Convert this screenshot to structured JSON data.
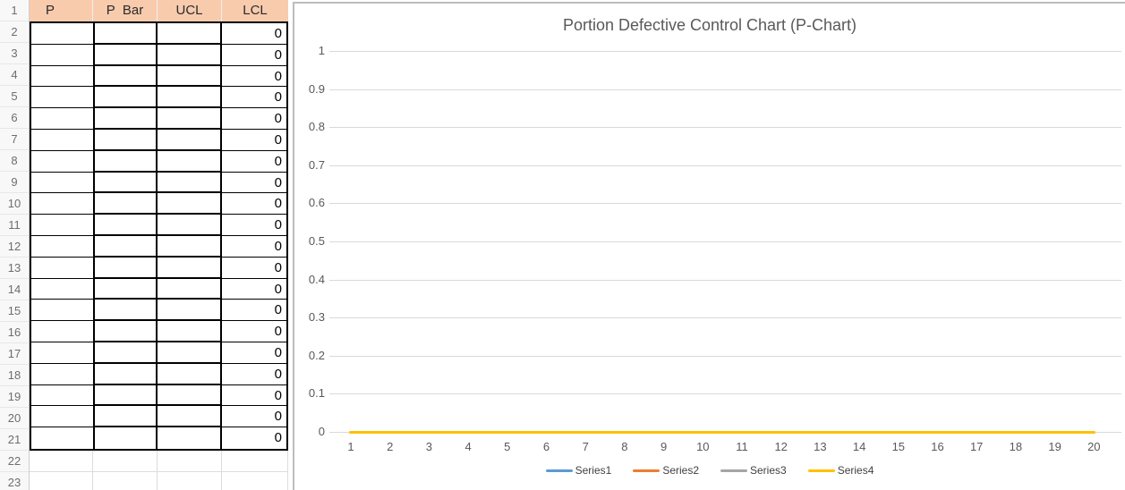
{
  "sheet": {
    "row_numbers": [
      "1",
      "2",
      "3",
      "4",
      "5",
      "6",
      "7",
      "8",
      "9",
      "10",
      "11",
      "12",
      "13",
      "14",
      "15",
      "16",
      "17",
      "18",
      "19",
      "20",
      "21",
      "22",
      "23"
    ],
    "columns": [
      "P",
      "P  Bar",
      "UCL",
      "LCL"
    ],
    "header_fill": "#F8CBAD",
    "rows": [
      {
        "p": "",
        "p_bar": "",
        "ucl": "",
        "lcl": "0"
      },
      {
        "p": "",
        "p_bar": "",
        "ucl": "",
        "lcl": "0"
      },
      {
        "p": "",
        "p_bar": "",
        "ucl": "",
        "lcl": "0"
      },
      {
        "p": "",
        "p_bar": "",
        "ucl": "",
        "lcl": "0"
      },
      {
        "p": "",
        "p_bar": "",
        "ucl": "",
        "lcl": "0"
      },
      {
        "p": "",
        "p_bar": "",
        "ucl": "",
        "lcl": "0"
      },
      {
        "p": "",
        "p_bar": "",
        "ucl": "",
        "lcl": "0"
      },
      {
        "p": "",
        "p_bar": "",
        "ucl": "",
        "lcl": "0"
      },
      {
        "p": "",
        "p_bar": "",
        "ucl": "",
        "lcl": "0"
      },
      {
        "p": "",
        "p_bar": "",
        "ucl": "",
        "lcl": "0"
      },
      {
        "p": "",
        "p_bar": "",
        "ucl": "",
        "lcl": "0"
      },
      {
        "p": "",
        "p_bar": "",
        "ucl": "",
        "lcl": "0"
      },
      {
        "p": "",
        "p_bar": "",
        "ucl": "",
        "lcl": "0"
      },
      {
        "p": "",
        "p_bar": "",
        "ucl": "",
        "lcl": "0"
      },
      {
        "p": "",
        "p_bar": "",
        "ucl": "",
        "lcl": "0"
      },
      {
        "p": "",
        "p_bar": "",
        "ucl": "",
        "lcl": "0"
      },
      {
        "p": "",
        "p_bar": "",
        "ucl": "",
        "lcl": "0"
      },
      {
        "p": "",
        "p_bar": "",
        "ucl": "",
        "lcl": "0"
      },
      {
        "p": "",
        "p_bar": "",
        "ucl": "",
        "lcl": "0"
      },
      {
        "p": "",
        "p_bar": "",
        "ucl": "",
        "lcl": "0"
      }
    ]
  },
  "chart_data": {
    "type": "line",
    "title": "Portion Defective Control Chart (P-Chart)",
    "x": [
      1,
      2,
      3,
      4,
      5,
      6,
      7,
      8,
      9,
      10,
      11,
      12,
      13,
      14,
      15,
      16,
      17,
      18,
      19,
      20
    ],
    "xticks": [
      "1",
      "2",
      "3",
      "4",
      "5",
      "6",
      "7",
      "8",
      "9",
      "10",
      "11",
      "12",
      "13",
      "14",
      "15",
      "16",
      "17",
      "18",
      "19",
      "20"
    ],
    "yticks_top_down": [
      "1",
      "0.9",
      "0.8",
      "0.7",
      "0.6",
      "0.5",
      "0.4",
      "0.3",
      "0.2",
      "0.1",
      "0"
    ],
    "ylim": [
      0,
      1
    ],
    "grid": true,
    "gridline_color": "#D9D9D9",
    "axis_text_color": "#595959",
    "legend_position": "bottom",
    "series": [
      {
        "name": "Series1",
        "color": "#5B9BD5",
        "values": []
      },
      {
        "name": "Series2",
        "color": "#ED7D31",
        "values": []
      },
      {
        "name": "Series3",
        "color": "#A5A5A5",
        "values": []
      },
      {
        "name": "Series4",
        "color": "#FFC000",
        "values": [
          0,
          0,
          0,
          0,
          0,
          0,
          0,
          0,
          0,
          0,
          0,
          0,
          0,
          0,
          0,
          0,
          0,
          0,
          0,
          0
        ]
      }
    ]
  }
}
